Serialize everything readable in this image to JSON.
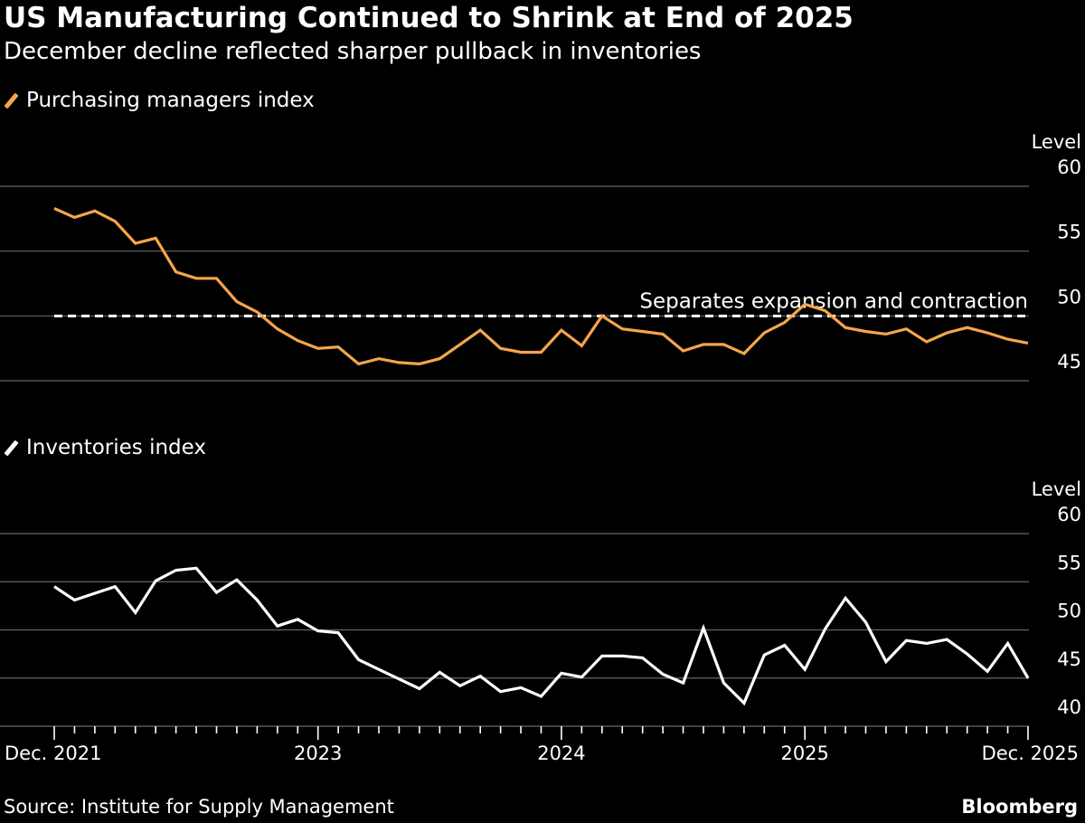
{
  "title": "US Manufacturing Continued to Shrink at End of 2025",
  "subtitle": "December decline reflected sharper pullback in inventories",
  "source": "Source: Institute for Supply Management",
  "brand": "Bloomberg",
  "colors": {
    "background": "#000000",
    "pmi": "#f5a54a",
    "inventories": "#ffffff",
    "grid": "#666666",
    "reference": "#ffffff"
  },
  "chart_data": [
    {
      "type": "line",
      "legend_label": "Purchasing managers index",
      "ylabel": "Level",
      "ylim": [
        45,
        60
      ],
      "yticks": [
        "60",
        "55",
        "50",
        "45"
      ],
      "x_ticks": [
        "Dec. 2021",
        "2023",
        "2024",
        "2025",
        "Dec. 2025"
      ],
      "reference_line": {
        "value": 50,
        "label": "Separates expansion and contraction",
        "style": "dashed"
      },
      "series": [
        {
          "name": "Purchasing managers index",
          "x": [
            "2021-12",
            "2022-01",
            "2022-02",
            "2022-03",
            "2022-04",
            "2022-05",
            "2022-06",
            "2022-07",
            "2022-08",
            "2022-09",
            "2022-10",
            "2022-11",
            "2022-12",
            "2023-01",
            "2023-02",
            "2023-03",
            "2023-04",
            "2023-05",
            "2023-06",
            "2023-07",
            "2023-08",
            "2023-09",
            "2023-10",
            "2023-11",
            "2023-12",
            "2024-01",
            "2024-02",
            "2024-03",
            "2024-04",
            "2024-05",
            "2024-06",
            "2024-07",
            "2024-08",
            "2024-09",
            "2024-10",
            "2024-11",
            "2024-12",
            "2025-01",
            "2025-02",
            "2025-03",
            "2025-04",
            "2025-05",
            "2025-06",
            "2025-07",
            "2025-08",
            "2025-09",
            "2025-10",
            "2025-11",
            "2025-12"
          ],
          "values": [
            58.3,
            57.6,
            58.1,
            57.3,
            55.6,
            56.0,
            53.4,
            52.9,
            52.9,
            51.1,
            50.3,
            49.0,
            48.1,
            47.5,
            47.6,
            46.3,
            46.7,
            46.4,
            46.3,
            46.7,
            47.8,
            48.9,
            47.5,
            47.2,
            47.2,
            48.9,
            47.7,
            50.0,
            49.0,
            48.8,
            48.6,
            47.3,
            47.8,
            47.8,
            47.1,
            48.7,
            49.5,
            50.9,
            50.4,
            49.1,
            48.8,
            48.6,
            49.0,
            48.0,
            48.7,
            49.1,
            48.7,
            48.2,
            47.9
          ]
        }
      ]
    },
    {
      "type": "line",
      "legend_label": "Inventories index",
      "ylabel": "Level",
      "ylim": [
        40,
        60
      ],
      "yticks": [
        "60",
        "55",
        "50",
        "45",
        "40"
      ],
      "x_ticks": [
        "Dec. 2021",
        "2023",
        "2024",
        "2025",
        "Dec. 2025"
      ],
      "series": [
        {
          "name": "Inventories index",
          "x": [
            "2021-12",
            "2022-01",
            "2022-02",
            "2022-03",
            "2022-04",
            "2022-05",
            "2022-06",
            "2022-07",
            "2022-08",
            "2022-09",
            "2022-10",
            "2022-11",
            "2022-12",
            "2023-01",
            "2023-02",
            "2023-03",
            "2023-04",
            "2023-05",
            "2023-06",
            "2023-07",
            "2023-08",
            "2023-09",
            "2023-10",
            "2023-11",
            "2023-12",
            "2024-01",
            "2024-02",
            "2024-03",
            "2024-04",
            "2024-05",
            "2024-06",
            "2024-07",
            "2024-08",
            "2024-09",
            "2024-10",
            "2024-11",
            "2024-12",
            "2025-01",
            "2025-02",
            "2025-03",
            "2025-04",
            "2025-05",
            "2025-06",
            "2025-07",
            "2025-08",
            "2025-09",
            "2025-10",
            "2025-11",
            "2025-12"
          ],
          "values": [
            54.5,
            53.1,
            53.8,
            54.5,
            51.8,
            55.1,
            56.2,
            56.4,
            53.9,
            55.2,
            53.1,
            50.4,
            51.1,
            49.9,
            49.7,
            46.9,
            45.9,
            44.9,
            43.9,
            45.6,
            44.2,
            45.2,
            43.6,
            44.0,
            43.1,
            45.5,
            45.1,
            47.3,
            47.3,
            47.1,
            45.4,
            44.5,
            50.2,
            44.5,
            42.4,
            47.4,
            48.4,
            45.9,
            50.1,
            53.3,
            50.8,
            46.7,
            48.9,
            48.6,
            49.0,
            47.5,
            45.7,
            48.6,
            45.0
          ]
        }
      ]
    }
  ]
}
